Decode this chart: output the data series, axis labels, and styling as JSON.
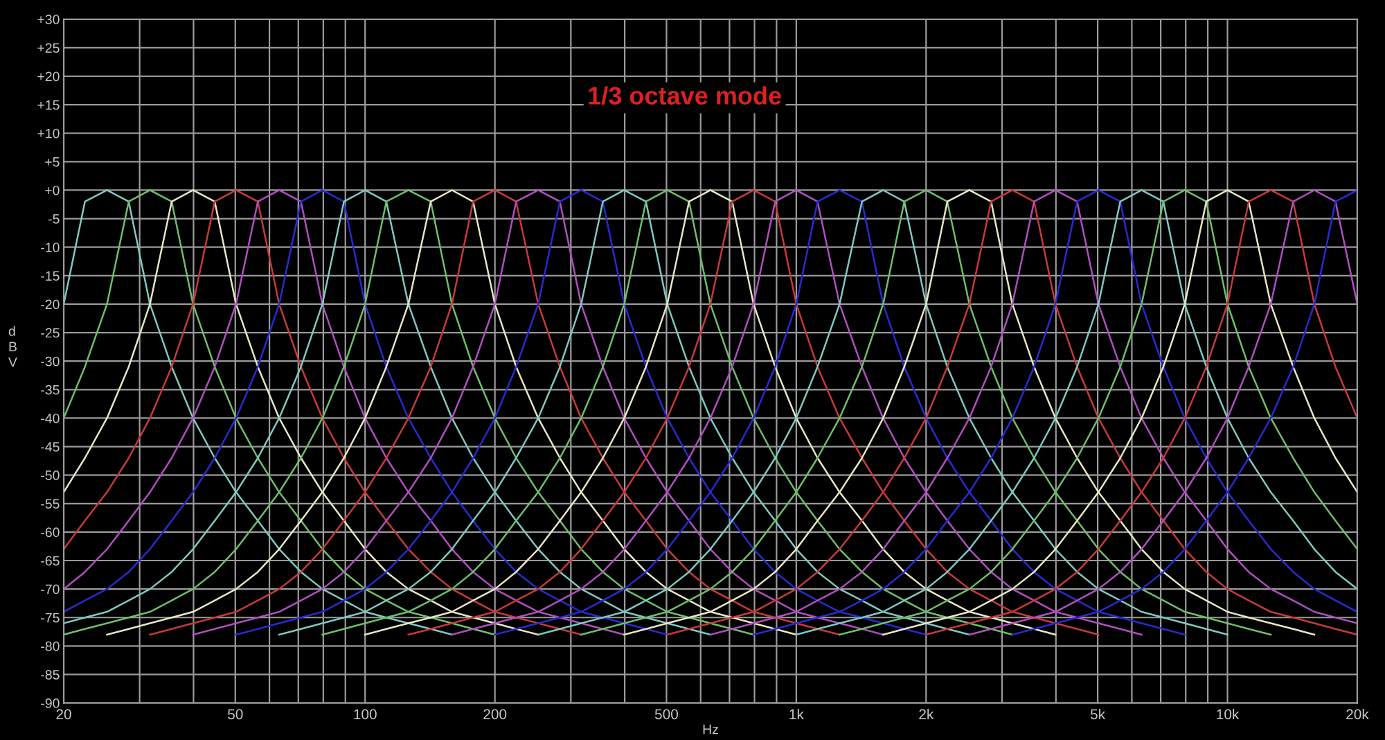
{
  "chart_data": {
    "type": "line",
    "xlabel": "Hz",
    "ylabel": "dBV",
    "annotations": [
      "1/3 octave mode"
    ],
    "log": "x",
    "grid": true,
    "line_style": "solid",
    "marker": "none",
    "xlim": [
      20,
      20000
    ],
    "ylim": [
      -90,
      30
    ],
    "xticks": [
      20,
      {
        "value": 30,
        "label": null
      },
      {
        "value": 40,
        "label": null
      },
      50,
      {
        "value": 60,
        "label": null
      },
      {
        "value": 70,
        "label": null
      },
      {
        "value": 80,
        "label": null
      },
      {
        "value": 90,
        "label": null
      },
      100,
      200,
      {
        "value": 300,
        "label": null
      },
      {
        "value": 400,
        "label": null
      },
      500,
      {
        "value": 600,
        "label": null
      },
      {
        "value": 700,
        "label": null
      },
      {
        "value": 800,
        "label": null
      },
      {
        "value": 900,
        "label": null
      },
      {
        "value": 1000,
        "label": "1k"
      },
      {
        "value": 2000,
        "label": "2k"
      },
      {
        "value": 3000,
        "label": null
      },
      {
        "value": 4000,
        "label": null
      },
      {
        "value": 5000,
        "label": "5k"
      },
      {
        "value": 6000,
        "label": null
      },
      {
        "value": 7000,
        "label": null
      },
      {
        "value": 8000,
        "label": null
      },
      {
        "value": 9000,
        "label": null
      },
      {
        "value": 10000,
        "label": "10k"
      },
      {
        "value": 20000,
        "label": "20k"
      }
    ],
    "yticks": [
      {
        "value": 30,
        "label": "+30"
      },
      {
        "value": 25,
        "label": "+25"
      },
      {
        "value": 20,
        "label": "+20"
      },
      {
        "value": 15,
        "label": "+15"
      },
      {
        "value": 10,
        "label": "+10"
      },
      {
        "value": 5,
        "label": "+5"
      },
      {
        "value": 0,
        "label": "+0"
      },
      -5,
      -10,
      -15,
      -20,
      -25,
      -30,
      -35,
      -40,
      -45,
      -50,
      -55,
      -60,
      -65,
      -70,
      -75,
      -80,
      -85,
      -90
    ],
    "x": [
      20,
      22.4,
      25.2,
      28.3,
      31.7,
      35.6,
      39.9,
      44.8,
      50.2,
      56.4,
      63.2,
      71,
      79.6,
      89.3,
      100,
      112,
      126,
      142,
      159,
      178,
      200,
      224,
      252,
      283,
      317,
      356,
      399,
      448,
      502,
      564,
      632,
      710,
      796,
      893,
      1000,
      1120,
      1260,
      1420,
      1590,
      1780,
      2000,
      2240,
      2520,
      2830,
      3170,
      3560,
      3990,
      4480,
      5020,
      5640,
      6320,
      7100,
      7960,
      8930,
      10000,
      11200,
      12600,
      14200,
      15900,
      17800,
      20000
    ],
    "series": [
      {
        "color": "#7fc9c0",
        "values": [
          -20,
          -2,
          0,
          -2,
          -20,
          -31,
          -40,
          -47,
          -53,
          -58,
          -63,
          -67,
          -70,
          -72,
          -74,
          -75,
          -76,
          -77,
          -78,
          null,
          null,
          null,
          null,
          null,
          null,
          null,
          null,
          null,
          null,
          null,
          null,
          null,
          null,
          null,
          null,
          null,
          null,
          null,
          null,
          null,
          null,
          null,
          null,
          null,
          null,
          null,
          null,
          null,
          null,
          null,
          null,
          null,
          null,
          null,
          null,
          null,
          null,
          null,
          null,
          null,
          null
        ]
      },
      {
        "color": "#6fbf6a",
        "values": [
          -40,
          -31,
          -20,
          -2,
          0,
          -2,
          -20,
          -31,
          -40,
          -47,
          -53,
          -58,
          -63,
          -67,
          -70,
          -72,
          -74,
          -75,
          -76,
          -77,
          -78,
          null,
          null,
          null,
          null,
          null,
          null,
          null,
          null,
          null,
          null,
          null,
          null,
          null,
          null,
          null,
          null,
          null,
          null,
          null,
          null,
          null,
          null,
          null,
          null,
          null,
          null,
          null,
          null,
          null,
          null,
          null,
          null,
          null,
          null,
          null,
          null,
          null,
          null,
          null,
          null
        ]
      },
      {
        "color": "#e8e6c4",
        "values": [
          -53,
          -47,
          -40,
          -31,
          -20,
          -2,
          0,
          -2,
          -20,
          -31,
          -40,
          -47,
          -53,
          -58,
          -63,
          -67,
          -70,
          -72,
          -74,
          -75,
          -76,
          -77,
          -78,
          null,
          null,
          null,
          null,
          null,
          null,
          null,
          null,
          null,
          null,
          null,
          null,
          null,
          null,
          null,
          null,
          null,
          null,
          null,
          null,
          null,
          null,
          null,
          null,
          null,
          null,
          null,
          null,
          null,
          null,
          null,
          null,
          null,
          null,
          null,
          null,
          null,
          null
        ]
      },
      {
        "color": "#c83a3a",
        "values": [
          -63,
          -58,
          -53,
          -47,
          -40,
          -31,
          -20,
          -2,
          0,
          -2,
          -20,
          -31,
          -40,
          -47,
          -53,
          -58,
          -63,
          -67,
          -70,
          -72,
          -74,
          -75,
          -76,
          -77,
          -78,
          null,
          null,
          null,
          null,
          null,
          null,
          null,
          null,
          null,
          null,
          null,
          null,
          null,
          null,
          null,
          null,
          null,
          null,
          null,
          null,
          null,
          null,
          null,
          null,
          null,
          null,
          null,
          null,
          null,
          null,
          null,
          null,
          null,
          null,
          null,
          null
        ]
      },
      {
        "color": "#b04fc0",
        "values": [
          -70,
          -67,
          -63,
          -58,
          -53,
          -47,
          -40,
          -31,
          -20,
          -2,
          0,
          -2,
          -20,
          -31,
          -40,
          -47,
          -53,
          -58,
          -63,
          -67,
          -70,
          -72,
          -74,
          -75,
          -76,
          -77,
          -78,
          null,
          null,
          null,
          null,
          null,
          null,
          null,
          null,
          null,
          null,
          null,
          null,
          null,
          null,
          null,
          null,
          null,
          null,
          null,
          null,
          null,
          null,
          null,
          null,
          null,
          null,
          null,
          null,
          null,
          null,
          null,
          null,
          null,
          null
        ]
      },
      {
        "color": "#2a2ad0",
        "values": [
          -74,
          -72,
          -70,
          -67,
          -63,
          -58,
          -53,
          -47,
          -40,
          -31,
          -20,
          -2,
          0,
          -2,
          -20,
          -31,
          -40,
          -47,
          -53,
          -58,
          -63,
          -67,
          -70,
          -72,
          -74,
          -75,
          -76,
          -77,
          -78,
          null,
          null,
          null,
          null,
          null,
          null,
          null,
          null,
          null,
          null,
          null,
          null,
          null,
          null,
          null,
          null,
          null,
          null,
          null,
          null,
          null,
          null,
          null,
          null,
          null,
          null,
          null,
          null,
          null,
          null,
          null,
          null
        ]
      },
      {
        "color": "#7fc9c0",
        "values": [
          -76,
          -75,
          -74,
          -72,
          -70,
          -67,
          -63,
          -58,
          -53,
          -47,
          -40,
          -31,
          -20,
          -2,
          0,
          -2,
          -20,
          -31,
          -40,
          -47,
          -53,
          -58,
          -63,
          -67,
          -70,
          -72,
          -74,
          -75,
          -76,
          -77,
          -78,
          null,
          null,
          null,
          null,
          null,
          null,
          null,
          null,
          null,
          null,
          null,
          null,
          null,
          null,
          null,
          null,
          null,
          null,
          null,
          null,
          null,
          null,
          null,
          null,
          null,
          null,
          null,
          null,
          null,
          null
        ]
      },
      {
        "color": "#6fbf6a",
        "values": [
          -78,
          -77,
          -76,
          -75,
          -74,
          -72,
          -70,
          -67,
          -63,
          -58,
          -53,
          -47,
          -40,
          -31,
          -20,
          -2,
          0,
          -2,
          -20,
          -31,
          -40,
          -47,
          -53,
          -58,
          -63,
          -67,
          -70,
          -72,
          -74,
          -75,
          -76,
          -77,
          -78,
          null,
          null,
          null,
          null,
          null,
          null,
          null,
          null,
          null,
          null,
          null,
          null,
          null,
          null,
          null,
          null,
          null,
          null,
          null,
          null,
          null,
          null,
          null,
          null,
          null,
          null,
          null,
          null
        ]
      },
      {
        "color": "#e8e6c4",
        "values": [
          null,
          null,
          -78,
          -77,
          -76,
          -75,
          -74,
          -72,
          -70,
          -67,
          -63,
          -58,
          -53,
          -47,
          -40,
          -31,
          -20,
          -2,
          0,
          -2,
          -20,
          -31,
          -40,
          -47,
          -53,
          -58,
          -63,
          -67,
          -70,
          -72,
          -74,
          -75,
          -76,
          -77,
          -78,
          null,
          null,
          null,
          null,
          null,
          null,
          null,
          null,
          null,
          null,
          null,
          null,
          null,
          null,
          null,
          null,
          null,
          null,
          null,
          null,
          null,
          null,
          null,
          null,
          null,
          null
        ]
      },
      {
        "color": "#c83a3a",
        "values": [
          null,
          null,
          null,
          null,
          -78,
          -77,
          -76,
          -75,
          -74,
          -72,
          -70,
          -67,
          -63,
          -58,
          -53,
          -47,
          -40,
          -31,
          -20,
          -2,
          0,
          -2,
          -20,
          -31,
          -40,
          -47,
          -53,
          -58,
          -63,
          -67,
          -70,
          -72,
          -74,
          -75,
          -76,
          -77,
          -78,
          null,
          null,
          null,
          null,
          null,
          null,
          null,
          null,
          null,
          null,
          null,
          null,
          null,
          null,
          null,
          null,
          null,
          null,
          null,
          null,
          null,
          null,
          null,
          null
        ]
      },
      {
        "color": "#b04fc0",
        "values": [
          null,
          null,
          null,
          null,
          null,
          null,
          -78,
          -77,
          -76,
          -75,
          -74,
          -72,
          -70,
          -67,
          -63,
          -58,
          -53,
          -47,
          -40,
          -31,
          -20,
          -2,
          0,
          -2,
          -20,
          -31,
          -40,
          -47,
          -53,
          -58,
          -63,
          -67,
          -70,
          -72,
          -74,
          -75,
          -76,
          -77,
          -78,
          null,
          null,
          null,
          null,
          null,
          null,
          null,
          null,
          null,
          null,
          null,
          null,
          null,
          null,
          null,
          null,
          null,
          null,
          null,
          null,
          null,
          null
        ]
      },
      {
        "color": "#2a2ad0",
        "values": [
          null,
          null,
          null,
          null,
          null,
          null,
          null,
          null,
          -78,
          -77,
          -76,
          -75,
          -74,
          -72,
          -70,
          -67,
          -63,
          -58,
          -53,
          -47,
          -40,
          -31,
          -20,
          -2,
          0,
          -2,
          -20,
          -31,
          -40,
          -47,
          -53,
          -58,
          -63,
          -67,
          -70,
          -72,
          -74,
          -75,
          -76,
          -77,
          -78,
          null,
          null,
          null,
          null,
          null,
          null,
          null,
          null,
          null,
          null,
          null,
          null,
          null,
          null,
          null,
          null,
          null,
          null,
          null,
          null
        ]
      },
      {
        "color": "#7fc9c0",
        "values": [
          null,
          null,
          null,
          null,
          null,
          null,
          null,
          null,
          null,
          null,
          -78,
          -77,
          -76,
          -75,
          -74,
          -72,
          -70,
          -67,
          -63,
          -58,
          -53,
          -47,
          -40,
          -31,
          -20,
          -2,
          0,
          -2,
          -20,
          -31,
          -40,
          -47,
          -53,
          -58,
          -63,
          -67,
          -70,
          -72,
          -74,
          -75,
          -76,
          -77,
          -78,
          null,
          null,
          null,
          null,
          null,
          null,
          null,
          null,
          null,
          null,
          null,
          null,
          null,
          null,
          null,
          null,
          null,
          null
        ]
      },
      {
        "color": "#6fbf6a",
        "values": [
          null,
          null,
          null,
          null,
          null,
          null,
          null,
          null,
          null,
          null,
          null,
          null,
          -78,
          -77,
          -76,
          -75,
          -74,
          -72,
          -70,
          -67,
          -63,
          -58,
          -53,
          -47,
          -40,
          -31,
          -20,
          -2,
          0,
          -2,
          -20,
          -31,
          -40,
          -47,
          -53,
          -58,
          -63,
          -67,
          -70,
          -72,
          -74,
          -75,
          -76,
          -77,
          -78,
          null,
          null,
          null,
          null,
          null,
          null,
          null,
          null,
          null,
          null,
          null,
          null,
          null,
          null,
          null,
          null
        ]
      },
      {
        "color": "#e8e6c4",
        "values": [
          null,
          null,
          null,
          null,
          null,
          null,
          null,
          null,
          null,
          null,
          null,
          null,
          null,
          null,
          -78,
          -77,
          -76,
          -75,
          -74,
          -72,
          -70,
          -67,
          -63,
          -58,
          -53,
          -47,
          -40,
          -31,
          -20,
          -2,
          0,
          -2,
          -20,
          -31,
          -40,
          -47,
          -53,
          -58,
          -63,
          -67,
          -70,
          -72,
          -74,
          -75,
          -76,
          -77,
          -78,
          null,
          null,
          null,
          null,
          null,
          null,
          null,
          null,
          null,
          null,
          null,
          null,
          null,
          null
        ]
      },
      {
        "color": "#c83a3a",
        "values": [
          null,
          null,
          null,
          null,
          null,
          null,
          null,
          null,
          null,
          null,
          null,
          null,
          null,
          null,
          null,
          null,
          -78,
          -77,
          -76,
          -75,
          -74,
          -72,
          -70,
          -67,
          -63,
          -58,
          -53,
          -47,
          -40,
          -31,
          -20,
          -2,
          0,
          -2,
          -20,
          -31,
          -40,
          -47,
          -53,
          -58,
          -63,
          -67,
          -70,
          -72,
          -74,
          -75,
          -76,
          -77,
          -78,
          null,
          null,
          null,
          null,
          null,
          null,
          null,
          null,
          null,
          null,
          null,
          null
        ]
      },
      {
        "color": "#b04fc0",
        "values": [
          null,
          null,
          null,
          null,
          null,
          null,
          null,
          null,
          null,
          null,
          null,
          null,
          null,
          null,
          null,
          null,
          null,
          null,
          -78,
          -77,
          -76,
          -75,
          -74,
          -72,
          -70,
          -67,
          -63,
          -58,
          -53,
          -47,
          -40,
          -31,
          -20,
          -2,
          0,
          -2,
          -20,
          -31,
          -40,
          -47,
          -53,
          -58,
          -63,
          -67,
          -70,
          -72,
          -74,
          -75,
          -76,
          -77,
          -78,
          null,
          null,
          null,
          null,
          null,
          null,
          null,
          null,
          null,
          null
        ]
      },
      {
        "color": "#2a2ad0",
        "values": [
          null,
          null,
          null,
          null,
          null,
          null,
          null,
          null,
          null,
          null,
          null,
          null,
          null,
          null,
          null,
          null,
          null,
          null,
          null,
          null,
          -78,
          -77,
          -76,
          -75,
          -74,
          -72,
          -70,
          -67,
          -63,
          -58,
          -53,
          -47,
          -40,
          -31,
          -20,
          -2,
          0,
          -2,
          -20,
          -31,
          -40,
          -47,
          -53,
          -58,
          -63,
          -67,
          -70,
          -72,
          -74,
          -75,
          -76,
          -77,
          -78,
          null,
          null,
          null,
          null,
          null,
          null,
          null,
          null
        ]
      },
      {
        "color": "#7fc9c0",
        "values": [
          null,
          null,
          null,
          null,
          null,
          null,
          null,
          null,
          null,
          null,
          null,
          null,
          null,
          null,
          null,
          null,
          null,
          null,
          null,
          null,
          null,
          null,
          -78,
          -77,
          -76,
          -75,
          -74,
          -72,
          -70,
          -67,
          -63,
          -58,
          -53,
          -47,
          -40,
          -31,
          -20,
          -2,
          0,
          -2,
          -20,
          -31,
          -40,
          -47,
          -53,
          -58,
          -63,
          -67,
          -70,
          -72,
          -74,
          -75,
          -76,
          -77,
          -78,
          null,
          null,
          null,
          null,
          null,
          null
        ]
      },
      {
        "color": "#6fbf6a",
        "values": [
          null,
          null,
          null,
          null,
          null,
          null,
          null,
          null,
          null,
          null,
          null,
          null,
          null,
          null,
          null,
          null,
          null,
          null,
          null,
          null,
          null,
          null,
          null,
          null,
          -78,
          -77,
          -76,
          -75,
          -74,
          -72,
          -70,
          -67,
          -63,
          -58,
          -53,
          -47,
          -40,
          -31,
          -20,
          -2,
          0,
          -2,
          -20,
          -31,
          -40,
          -47,
          -53,
          -58,
          -63,
          -67,
          -70,
          -72,
          -74,
          -75,
          -76,
          -77,
          -78,
          null,
          null,
          null,
          null
        ]
      },
      {
        "color": "#e8e6c4",
        "values": [
          null,
          null,
          null,
          null,
          null,
          null,
          null,
          null,
          null,
          null,
          null,
          null,
          null,
          null,
          null,
          null,
          null,
          null,
          null,
          null,
          null,
          null,
          null,
          null,
          null,
          null,
          -78,
          -77,
          -76,
          -75,
          -74,
          -72,
          -70,
          -67,
          -63,
          -58,
          -53,
          -47,
          -40,
          -31,
          -20,
          -2,
          0,
          -2,
          -20,
          -31,
          -40,
          -47,
          -53,
          -58,
          -63,
          -67,
          -70,
          -72,
          -74,
          -75,
          -76,
          -77,
          -78,
          null,
          null
        ]
      },
      {
        "color": "#c83a3a",
        "values": [
          null,
          null,
          null,
          null,
          null,
          null,
          null,
          null,
          null,
          null,
          null,
          null,
          null,
          null,
          null,
          null,
          null,
          null,
          null,
          null,
          null,
          null,
          null,
          null,
          null,
          null,
          null,
          null,
          -78,
          -77,
          -76,
          -75,
          -74,
          -72,
          -70,
          -67,
          -63,
          -58,
          -53,
          -47,
          -40,
          -31,
          -20,
          -2,
          0,
          -2,
          -20,
          -31,
          -40,
          -47,
          -53,
          -58,
          -63,
          -67,
          -70,
          -72,
          -74,
          -75,
          -76,
          -77,
          -78
        ]
      },
      {
        "color": "#b04fc0",
        "values": [
          null,
          null,
          null,
          null,
          null,
          null,
          null,
          null,
          null,
          null,
          null,
          null,
          null,
          null,
          null,
          null,
          null,
          null,
          null,
          null,
          null,
          null,
          null,
          null,
          null,
          null,
          null,
          null,
          null,
          null,
          -78,
          -77,
          -76,
          -75,
          -74,
          -72,
          -70,
          -67,
          -63,
          -58,
          -53,
          -47,
          -40,
          -31,
          -20,
          -2,
          0,
          -2,
          -20,
          -31,
          -40,
          -47,
          -53,
          -58,
          -63,
          -67,
          -70,
          -72,
          -74,
          -75,
          -76
        ]
      },
      {
        "color": "#2a2ad0",
        "values": [
          null,
          null,
          null,
          null,
          null,
          null,
          null,
          null,
          null,
          null,
          null,
          null,
          null,
          null,
          null,
          null,
          null,
          null,
          null,
          null,
          null,
          null,
          null,
          null,
          null,
          null,
          null,
          null,
          null,
          null,
          null,
          null,
          -78,
          -77,
          -76,
          -75,
          -74,
          -72,
          -70,
          -67,
          -63,
          -58,
          -53,
          -47,
          -40,
          -31,
          -20,
          -2,
          0,
          -2,
          -20,
          -31,
          -40,
          -47,
          -53,
          -58,
          -63,
          -67,
          -70,
          -72,
          -74
        ]
      },
      {
        "color": "#7fc9c0",
        "values": [
          null,
          null,
          null,
          null,
          null,
          null,
          null,
          null,
          null,
          null,
          null,
          null,
          null,
          null,
          null,
          null,
          null,
          null,
          null,
          null,
          null,
          null,
          null,
          null,
          null,
          null,
          null,
          null,
          null,
          null,
          null,
          null,
          null,
          null,
          -78,
          -77,
          -76,
          -75,
          -74,
          -72,
          -70,
          -67,
          -63,
          -58,
          -53,
          -47,
          -40,
          -31,
          -20,
          -2,
          0,
          -2,
          -20,
          -31,
          -40,
          -47,
          -53,
          -58,
          -63,
          -67,
          -70
        ]
      },
      {
        "color": "#6fbf6a",
        "values": [
          null,
          null,
          null,
          null,
          null,
          null,
          null,
          null,
          null,
          null,
          null,
          null,
          null,
          null,
          null,
          null,
          null,
          null,
          null,
          null,
          null,
          null,
          null,
          null,
          null,
          null,
          null,
          null,
          null,
          null,
          null,
          null,
          null,
          null,
          null,
          null,
          -78,
          -77,
          -76,
          -75,
          -74,
          -72,
          -70,
          -67,
          -63,
          -58,
          -53,
          -47,
          -40,
          -31,
          -20,
          -2,
          0,
          -2,
          -20,
          -31,
          -40,
          -47,
          -53,
          -58,
          -63
        ]
      },
      {
        "color": "#e8e6c4",
        "values": [
          null,
          null,
          null,
          null,
          null,
          null,
          null,
          null,
          null,
          null,
          null,
          null,
          null,
          null,
          null,
          null,
          null,
          null,
          null,
          null,
          null,
          null,
          null,
          null,
          null,
          null,
          null,
          null,
          null,
          null,
          null,
          null,
          null,
          null,
          null,
          null,
          null,
          null,
          -78,
          -77,
          -76,
          -75,
          -74,
          -72,
          -70,
          -67,
          -63,
          -58,
          -53,
          -47,
          -40,
          -31,
          -20,
          -2,
          0,
          -2,
          -20,
          -31,
          -40,
          -47,
          -53
        ]
      },
      {
        "color": "#c83a3a",
        "values": [
          null,
          null,
          null,
          null,
          null,
          null,
          null,
          null,
          null,
          null,
          null,
          null,
          null,
          null,
          null,
          null,
          null,
          null,
          null,
          null,
          null,
          null,
          null,
          null,
          null,
          null,
          null,
          null,
          null,
          null,
          null,
          null,
          null,
          null,
          null,
          null,
          null,
          null,
          null,
          null,
          -78,
          -77,
          -76,
          -75,
          -74,
          -72,
          -70,
          -67,
          -63,
          -58,
          -53,
          -47,
          -40,
          -31,
          -20,
          -2,
          0,
          -2,
          -20,
          -31,
          -40
        ]
      },
      {
        "color": "#b04fc0",
        "values": [
          null,
          null,
          null,
          null,
          null,
          null,
          null,
          null,
          null,
          null,
          null,
          null,
          null,
          null,
          null,
          null,
          null,
          null,
          null,
          null,
          null,
          null,
          null,
          null,
          null,
          null,
          null,
          null,
          null,
          null,
          null,
          null,
          null,
          null,
          null,
          null,
          null,
          null,
          null,
          null,
          null,
          null,
          -78,
          -77,
          -76,
          -75,
          -74,
          -72,
          -70,
          -67,
          -63,
          -58,
          -53,
          -47,
          -40,
          -31,
          -20,
          -2,
          0,
          -2,
          -20
        ]
      },
      {
        "color": "#2a2ad0",
        "values": [
          null,
          null,
          null,
          null,
          null,
          null,
          null,
          null,
          null,
          null,
          null,
          null,
          null,
          null,
          null,
          null,
          null,
          null,
          null,
          null,
          null,
          null,
          null,
          null,
          null,
          null,
          null,
          null,
          null,
          null,
          null,
          null,
          null,
          null,
          null,
          null,
          null,
          null,
          null,
          null,
          null,
          null,
          null,
          null,
          -78,
          -77,
          -76,
          -75,
          -74,
          -72,
          -70,
          -67,
          -63,
          -58,
          -53,
          -47,
          -40,
          -31,
          -20,
          -2,
          0
        ]
      }
    ]
  }
}
